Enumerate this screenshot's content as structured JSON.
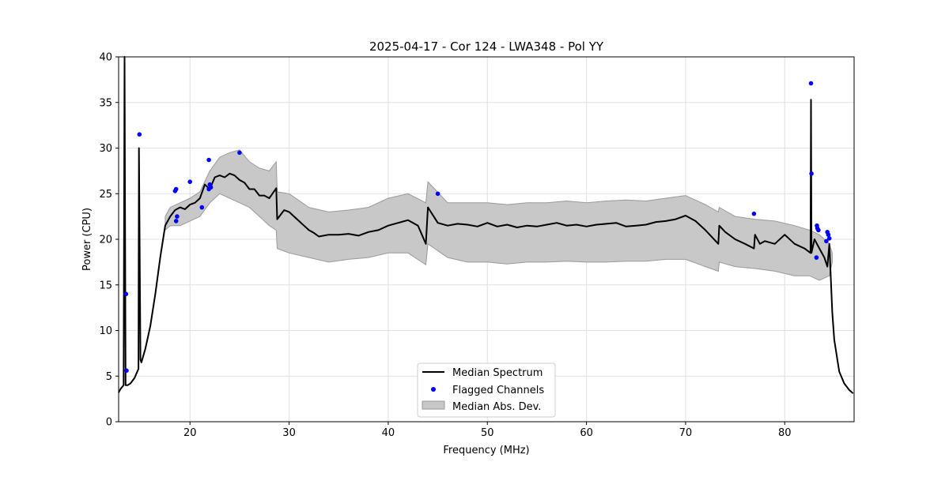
{
  "chart_data": {
    "type": "line",
    "title": "2025-04-17 - Cor 124 - LWA348 - Pol YY",
    "xlabel": "Frequency (MHz)",
    "ylabel": "Power (CPU)",
    "xlim": [
      12.8,
      87.0
    ],
    "ylim": [
      0,
      40
    ],
    "xticks": [
      20,
      30,
      40,
      50,
      60,
      70,
      80
    ],
    "yticks": [
      0,
      5,
      10,
      15,
      20,
      25,
      30,
      35,
      40
    ],
    "grid": true,
    "legend_position": "lower-center",
    "colors": {
      "median": "#000000",
      "flagged": "#0000ff",
      "band": "#c8c8c8",
      "band_edge": "#999999",
      "grid": "#e0e0e0"
    },
    "legend": [
      {
        "label": "Median Spectrum",
        "kind": "line"
      },
      {
        "label": "Flagged Channels",
        "kind": "marker"
      },
      {
        "label": "Median Abs. Dev.",
        "kind": "patch"
      }
    ],
    "series": [
      {
        "name": "Median Spectrum",
        "x": [
          12.8,
          13.0,
          13.3,
          13.4,
          13.5,
          13.7,
          14.0,
          14.4,
          14.8,
          14.85,
          15.0,
          15.1,
          15.5,
          16.0,
          16.5,
          17.0,
          17.5,
          18.0,
          18.5,
          19.0,
          19.5,
          20.0,
          20.5,
          21.0,
          21.5,
          22.0,
          22.5,
          23.0,
          23.5,
          24.0,
          24.5,
          25.0,
          25.5,
          26.0,
          26.5,
          27.0,
          27.5,
          28.0,
          28.7,
          28.8,
          29.5,
          30.0,
          30.5,
          31.0,
          31.5,
          32.0,
          32.5,
          33.0,
          34.0,
          35.0,
          36.0,
          37.0,
          38.0,
          39.0,
          40.0,
          41.0,
          42.0,
          43.0,
          43.8,
          44.0,
          45.0,
          46.0,
          47.0,
          48.0,
          49.0,
          50.0,
          51.0,
          52.0,
          53.0,
          54.0,
          55.0,
          56.0,
          57.0,
          58.0,
          59.0,
          60.0,
          61.0,
          62.0,
          63.0,
          64.0,
          65.0,
          66.0,
          67.0,
          68.0,
          69.0,
          70.0,
          71.0,
          72.0,
          73.3,
          73.4,
          74.0,
          75.0,
          76.0,
          76.9,
          77.0,
          77.5,
          78.0,
          79.0,
          80.0,
          81.0,
          82.0,
          82.6,
          82.65,
          82.7,
          83.0,
          83.5,
          84.0,
          84.3,
          84.5,
          84.8,
          85.0,
          85.5,
          86.0,
          86.5,
          86.9
        ],
        "values": [
          3.2,
          3.6,
          4.0,
          40.0,
          4.0,
          4.0,
          4.2,
          4.8,
          5.8,
          30.0,
          6.8,
          6.5,
          8.0,
          10.5,
          14.0,
          18.0,
          21.5,
          22.5,
          23.2,
          23.5,
          23.3,
          23.8,
          24.0,
          24.5,
          26.0,
          25.5,
          26.8,
          27.0,
          26.8,
          27.2,
          27.0,
          26.5,
          26.2,
          25.5,
          25.5,
          24.8,
          24.8,
          24.5,
          25.6,
          22.2,
          23.2,
          23.0,
          22.5,
          22.0,
          21.5,
          21.0,
          20.7,
          20.3,
          20.5,
          20.5,
          20.6,
          20.4,
          20.8,
          21.0,
          21.5,
          21.8,
          22.1,
          21.5,
          19.5,
          23.5,
          21.8,
          21.5,
          21.7,
          21.6,
          21.4,
          21.8,
          21.4,
          21.6,
          21.3,
          21.5,
          21.4,
          21.6,
          21.8,
          21.5,
          21.6,
          21.4,
          21.6,
          21.7,
          21.8,
          21.4,
          21.5,
          21.6,
          21.9,
          22.0,
          22.2,
          22.6,
          22.0,
          21.0,
          19.5,
          21.5,
          20.8,
          20.0,
          19.5,
          19.0,
          20.5,
          19.5,
          19.8,
          19.5,
          20.5,
          19.5,
          19.0,
          18.5,
          35.3,
          18.5,
          20.0,
          19.0,
          18.0,
          17.0,
          19.5,
          12.0,
          9.0,
          5.5,
          4.2,
          3.5,
          3.1
        ]
      },
      {
        "name": "Median Abs. Dev.",
        "x": [
          17.5,
          18.0,
          19.0,
          20.0,
          21.0,
          22.0,
          23.0,
          24.0,
          25.0,
          26.0,
          27.0,
          28.0,
          28.7,
          28.8,
          30.0,
          32.0,
          34.0,
          36.0,
          38.0,
          40.0,
          42.0,
          43.8,
          44.0,
          46.0,
          48.0,
          50.0,
          52.0,
          54.0,
          56.0,
          58.0,
          60.0,
          62.0,
          64.0,
          66.0,
          68.0,
          70.0,
          72.0,
          73.3,
          73.4,
          75.0,
          77.0,
          79.0,
          81.0,
          82.5,
          83.5,
          84.5,
          84.8
        ],
        "upper": [
          22.5,
          23.5,
          24.0,
          24.5,
          25.2,
          27.5,
          29.0,
          29.5,
          29.8,
          28.5,
          27.8,
          27.5,
          28.5,
          25.2,
          25.0,
          23.5,
          23.0,
          23.2,
          23.5,
          24.5,
          25.0,
          24.0,
          26.3,
          24.0,
          24.0,
          24.0,
          23.8,
          24.0,
          24.0,
          24.2,
          24.0,
          24.2,
          24.3,
          24.2,
          24.5,
          24.8,
          23.8,
          23.0,
          23.5,
          22.5,
          22.2,
          22.0,
          21.5,
          21.0,
          20.5,
          19.5,
          18.5
        ],
        "lower": [
          21.0,
          21.5,
          21.5,
          22.0,
          22.5,
          24.0,
          25.0,
          24.5,
          24.0,
          23.5,
          22.5,
          21.5,
          21.0,
          19.0,
          18.5,
          18.0,
          17.5,
          17.8,
          18.0,
          18.5,
          18.5,
          17.2,
          19.5,
          18.0,
          17.5,
          17.5,
          17.3,
          17.5,
          17.5,
          17.6,
          17.5,
          17.5,
          17.6,
          17.6,
          17.8,
          17.8,
          17.0,
          16.5,
          17.5,
          17.0,
          16.8,
          16.5,
          16.0,
          16.0,
          15.5,
          16.0,
          17.5
        ]
      },
      {
        "name": "Flagged Channels",
        "x": [
          13.55,
          13.6,
          14.9,
          18.5,
          18.6,
          18.6,
          18.7,
          20.0,
          21.2,
          21.9,
          21.9,
          22.0,
          22.1,
          25.0,
          45.0,
          76.9,
          82.65,
          82.7,
          83.2,
          83.25,
          83.3,
          83.4,
          84.2,
          84.3,
          84.4,
          84.5
        ],
        "values": [
          14.0,
          5.6,
          31.5,
          25.3,
          25.5,
          22.0,
          22.5,
          26.3,
          23.5,
          28.7,
          25.5,
          26.0,
          25.7,
          29.5,
          25.0,
          22.8,
          37.1,
          27.2,
          18.0,
          21.5,
          21.2,
          21.0,
          19.8,
          20.8,
          20.5,
          20.1
        ]
      }
    ]
  }
}
